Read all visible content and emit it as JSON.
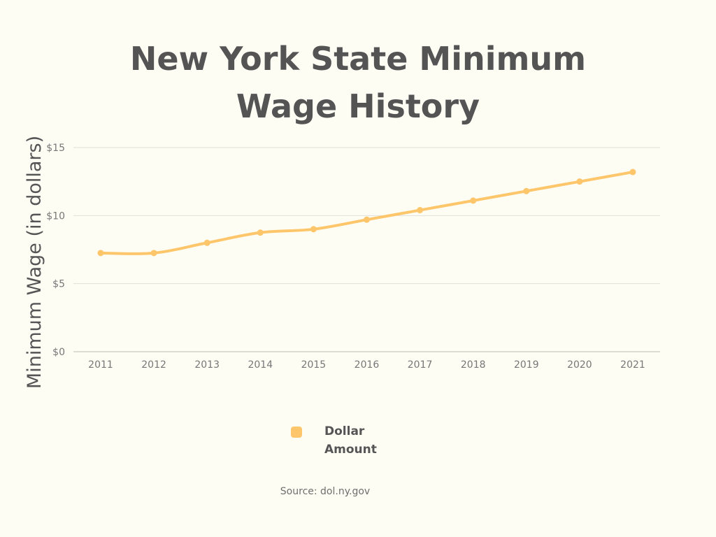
{
  "chart_data": {
    "type": "line",
    "title_lines": [
      "New York State Minimum",
      "Wage History"
    ],
    "ylabel": "Minimum Wage (in dollars)",
    "xlabel": "",
    "categories": [
      "2011",
      "2012",
      "2013",
      "2014",
      "2015",
      "2016",
      "2017",
      "2018",
      "2019",
      "2020",
      "2021"
    ],
    "y_ticks": [
      0,
      5,
      10,
      15
    ],
    "y_tick_labels": [
      "$0",
      "$5",
      "$10",
      "$15"
    ],
    "ylim": [
      0,
      15
    ],
    "grid": true,
    "legend_position": "bottom",
    "series": [
      {
        "name": "Dollar Amount",
        "legend_lines": [
          "Dollar",
          "Amount"
        ],
        "values": [
          7.25,
          7.25,
          8.0,
          8.75,
          9.0,
          9.7,
          10.4,
          11.1,
          11.8,
          12.5,
          13.2
        ]
      }
    ],
    "source": "Source: dol.ny.gov"
  },
  "colors": {
    "background": "#fdfdf4",
    "series": "#fec66b",
    "grid": "#e0e0da",
    "axis": "#bdbdb6",
    "title": "#545454"
  }
}
